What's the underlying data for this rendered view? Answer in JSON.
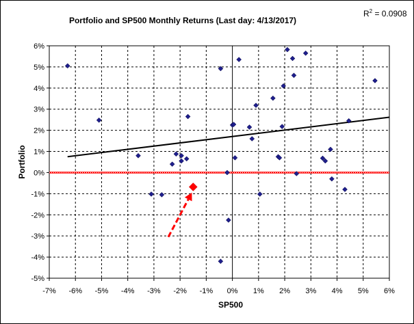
{
  "chart_data": {
    "type": "scatter",
    "title": "Portfolio and  SP500 Monthly Returns (Last day: 4/13/2017)",
    "annotation": {
      "r2_label": "R",
      "r2_exponent": "2",
      "r2_value": " = 0.0908"
    },
    "xlabel": "SP500",
    "ylabel": "Portfolio",
    "xlim": [
      -7,
      6
    ],
    "ylim": [
      -5,
      6
    ],
    "x_ticks": [
      -7,
      -6,
      -5,
      -4,
      -3,
      -2,
      -1,
      0,
      1,
      2,
      3,
      4,
      5,
      6
    ],
    "y_ticks": [
      -5,
      -4,
      -3,
      -2,
      -1,
      0,
      1,
      2,
      3,
      4,
      5,
      6
    ],
    "x_tick_labels": [
      "-7%",
      "-6%",
      "-5%",
      "-4%",
      "-3%",
      "-2%",
      "-1%",
      "0%",
      "1%",
      "2%",
      "3%",
      "4%",
      "5%",
      "6%"
    ],
    "y_tick_labels": [
      "-5%",
      "-4%",
      "-3%",
      "-2%",
      "-1%",
      "0%",
      "1%",
      "2%",
      "3%",
      "4%",
      "5%",
      "6%"
    ],
    "grid": true,
    "legend": "none",
    "colors": {
      "points": "#1f1f8c",
      "trendline": "#000000",
      "zero_line": "#ff0000",
      "highlight": "#ff0000",
      "arrow": "#ff0000",
      "grid": "#000000"
    },
    "series": [
      {
        "points": [
          [
            -6.3,
            5.05
          ],
          [
            -5.1,
            2.48
          ],
          [
            -3.6,
            0.8
          ],
          [
            -3.1,
            -1.02
          ],
          [
            -2.7,
            -1.05
          ],
          [
            -2.3,
            0.4
          ],
          [
            -2.15,
            0.88
          ],
          [
            -1.95,
            0.8
          ],
          [
            -1.95,
            0.55
          ],
          [
            -1.75,
            0.65
          ],
          [
            -1.7,
            2.65
          ],
          [
            -0.45,
            4.92
          ],
          [
            -0.45,
            -4.2
          ],
          [
            -0.2,
            0.0
          ],
          [
            -0.15,
            -2.25
          ],
          [
            0.0,
            2.25
          ],
          [
            0.05,
            2.28
          ],
          [
            0.1,
            0.7
          ],
          [
            0.25,
            5.35
          ],
          [
            0.65,
            2.15
          ],
          [
            0.75,
            1.6
          ],
          [
            0.9,
            3.18
          ],
          [
            1.05,
            -1.02
          ],
          [
            1.55,
            3.52
          ],
          [
            1.75,
            0.75
          ],
          [
            1.8,
            0.7
          ],
          [
            1.9,
            2.18
          ],
          [
            1.95,
            4.1
          ],
          [
            2.1,
            5.82
          ],
          [
            2.3,
            5.4
          ],
          [
            2.35,
            4.6
          ],
          [
            2.45,
            -0.05
          ],
          [
            2.8,
            5.65
          ],
          [
            3.45,
            0.68
          ],
          [
            3.55,
            0.55
          ],
          [
            3.75,
            1.1
          ],
          [
            3.8,
            -0.3
          ],
          [
            4.3,
            -0.8
          ],
          [
            4.45,
            2.45
          ],
          [
            5.45,
            4.35
          ]
        ]
      }
    ],
    "trendline": {
      "x": [
        -6.3,
        6.0
      ],
      "y": [
        0.75,
        2.62
      ]
    },
    "highlight_point": [
      -1.5,
      -0.68
    ],
    "arrow": {
      "from": [
        -2.45,
        -3.05
      ],
      "to": [
        -1.55,
        -0.95
      ]
    }
  }
}
